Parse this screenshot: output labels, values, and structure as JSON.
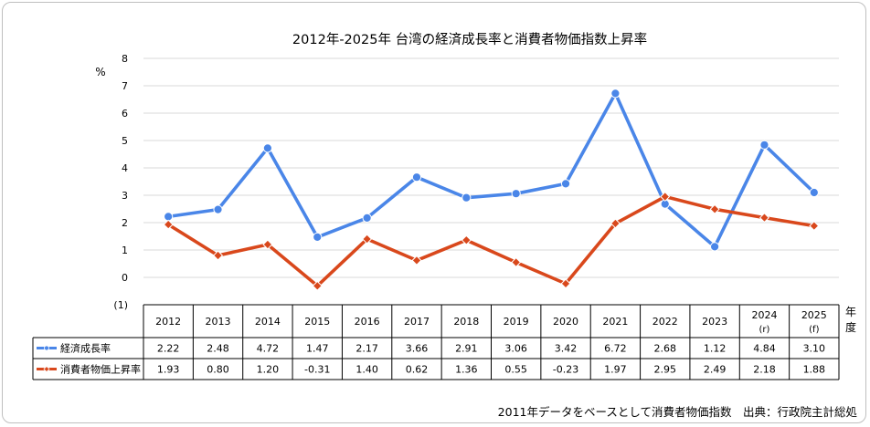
{
  "chart_data": {
    "type": "line",
    "title": "2012年-2025年 台湾の経済成長率と消費者物価指数上昇率",
    "ylabel": "%",
    "xlabel": "年度",
    "xlabel_chars": [
      "年",
      "度"
    ],
    "ylim": [
      -1,
      8
    ],
    "y_ticks": [
      "8",
      "7",
      "6",
      "5",
      "4",
      "3",
      "2",
      "1",
      "0",
      "(1)"
    ],
    "grid": true,
    "categories": [
      "2012",
      "2013",
      "2014",
      "2015",
      "2016",
      "2017",
      "2018",
      "2019",
      "2020",
      "2021",
      "2022",
      "2023",
      "2024",
      "2025"
    ],
    "category_notes": [
      "",
      "",
      "",
      "",
      "",
      "",
      "",
      "",
      "",
      "",
      "",
      "",
      "(r)",
      "(f)"
    ],
    "series": [
      {
        "name": "経済成長率",
        "color": "#4a86e8",
        "values": [
          2.22,
          2.48,
          4.72,
          1.47,
          2.17,
          3.66,
          2.91,
          3.06,
          3.42,
          6.72,
          2.68,
          1.12,
          4.84,
          3.1
        ],
        "labels": [
          "2.22",
          "2.48",
          "4.72",
          "1.47",
          "2.17",
          "3.66",
          "2.91",
          "3.06",
          "3.42",
          "6.72",
          "2.68",
          "1.12",
          "4.84",
          "3.10"
        ]
      },
      {
        "name": "消費者物価上昇率",
        "color": "#d9481c",
        "values": [
          1.93,
          0.8,
          1.2,
          -0.31,
          1.4,
          0.62,
          1.36,
          0.55,
          -0.23,
          1.97,
          2.95,
          2.49,
          2.18,
          1.88
        ],
        "labels": [
          "1.93",
          "0.80",
          "1.20",
          "-0.31",
          "1.40",
          "0.62",
          "1.36",
          "0.55",
          "-0.23",
          "1.97",
          "2.95",
          "2.49",
          "2.18",
          "1.88"
        ]
      }
    ],
    "footnote": "2011年データをベースとして消費者物価指数　出典：行政院主計総処"
  }
}
